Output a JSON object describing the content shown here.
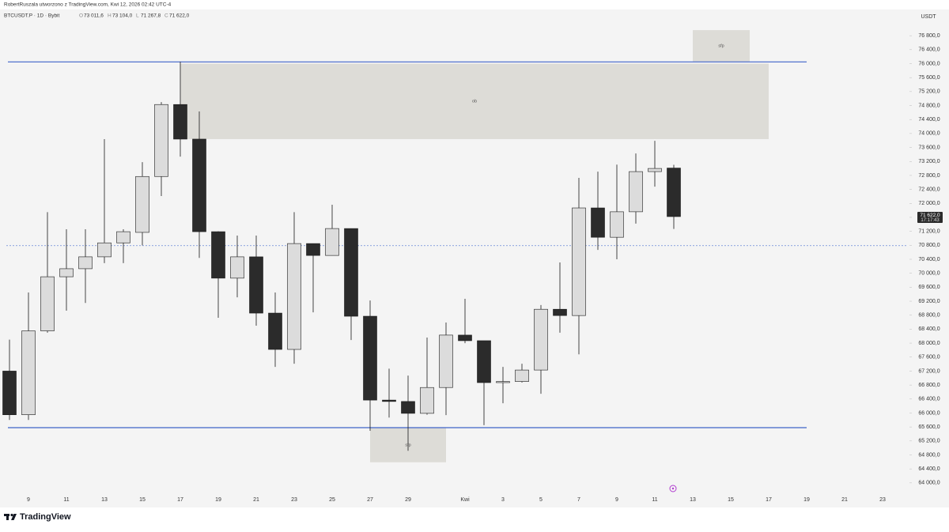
{
  "header": {
    "credit": "RobertRuszala utworzono z TradingView.com, Kwi 12, 2026 02:42 UTC-4",
    "symbol": "BTCUSDT.P · 1D · Bybit",
    "ohlc": [
      {
        "key": "O",
        "text": "73 011,6"
      },
      {
        "key": "H",
        "text": "73 104,0"
      },
      {
        "key": "L",
        "text": "71 267,8"
      },
      {
        "key": "C",
        "text": "71 622,0"
      }
    ]
  },
  "footer": {
    "brand": "TradingView"
  },
  "chart_data": {
    "type": "candlestick",
    "currency": "USDT",
    "categories": [
      null,
      "9",
      null,
      "11",
      null,
      "13",
      null,
      "15",
      null,
      "17",
      null,
      "19",
      null,
      "21",
      null,
      "23",
      null,
      "25",
      null,
      "27",
      null,
      "29",
      null,
      null,
      "Kwi",
      null,
      "3",
      null,
      "5",
      null,
      "7",
      null,
      "9",
      null,
      "11",
      null,
      "13",
      null,
      "15",
      null,
      "17",
      null,
      "19",
      null,
      "21",
      null,
      "23",
      null
    ],
    "open": [
      67200,
      65950,
      68350,
      69900,
      70130,
      70470,
      70870,
      71170,
      72770,
      74830,
      73840,
      71190,
      69860,
      70470,
      68860,
      67820,
      70850,
      70510,
      71280,
      68770,
      66370,
      66330,
      65990,
      66730,
      68230,
      68070,
      66870,
      66900,
      67230,
      68970,
      68790,
      71870,
      71030,
      71760,
      72910,
      73011.6,
      null,
      null,
      null,
      null,
      null,
      null,
      null,
      null,
      null,
      null,
      null,
      null
    ],
    "high": [
      68100,
      69450,
      71750,
      71260,
      71260,
      73840,
      71260,
      73180,
      74900,
      76054,
      74630,
      71200,
      71080,
      71080,
      69450,
      71750,
      70850,
      71960,
      71280,
      69220,
      67270,
      67070,
      68160,
      68590,
      69270,
      68070,
      67320,
      67410,
      69090,
      70310,
      72730,
      72910,
      73110,
      73430,
      73790,
      73104,
      null,
      null,
      null,
      null,
      null,
      null,
      null,
      null,
      null,
      null,
      null,
      null
    ],
    "low": [
      65800,
      65800,
      68300,
      68930,
      69150,
      70290,
      70290,
      70800,
      72210,
      73340,
      70440,
      68725,
      69310,
      68500,
      67320,
      67410,
      68880,
      70510,
      68090,
      65490,
      65870,
      64920,
      65950,
      65940,
      68000,
      65650,
      66280,
      66870,
      66550,
      68300,
      67680,
      70670,
      70400,
      71420,
      72480,
      71267.8,
      null,
      null,
      null,
      null,
      null,
      null,
      null,
      null,
      null,
      null,
      null,
      null
    ],
    "close": [
      65950,
      68350,
      69900,
      70130,
      70470,
      70870,
      71190,
      72770,
      74830,
      73840,
      71190,
      69860,
      70470,
      68860,
      67820,
      70850,
      70510,
      71280,
      68770,
      66370,
      66330,
      65990,
      66730,
      68230,
      68070,
      66870,
      66900,
      67230,
      68970,
      68790,
      71870,
      71030,
      71760,
      72910,
      73000,
      71622,
      null,
      null,
      null,
      null,
      null,
      null,
      null,
      null,
      null,
      null,
      null,
      null
    ],
    "up_color": "#dcdcdc",
    "down_color": "#2b2b2b",
    "outline_color": "#1a1a1a",
    "last_price_label": "71 622,0",
    "countdown": "17:17:43",
    "ylim": [
      63680,
      77550
    ],
    "yticks": [
      {
        "value": 64000,
        "label": "64 000,0"
      },
      {
        "value": 64400,
        "label": "64 400,0"
      },
      {
        "value": 64800,
        "label": "64 800,0"
      },
      {
        "value": 65200,
        "label": "65 200,0"
      },
      {
        "value": 65600,
        "label": "65 600,0"
      },
      {
        "value": 66000,
        "label": "66 000,0"
      },
      {
        "value": 66400,
        "label": "66 400,0"
      },
      {
        "value": 66800,
        "label": "66 800,0"
      },
      {
        "value": 67200,
        "label": "67 200,0"
      },
      {
        "value": 67600,
        "label": "67 600,0"
      },
      {
        "value": 68000,
        "label": "68 000,0"
      },
      {
        "value": 68400,
        "label": "68 400,0"
      },
      {
        "value": 68800,
        "label": "68 800,0"
      },
      {
        "value": 69200,
        "label": "69 200,0"
      },
      {
        "value": 69600,
        "label": "69 600,0"
      },
      {
        "value": 70000,
        "label": "70 000,0"
      },
      {
        "value": 70400,
        "label": "70 400,0"
      },
      {
        "value": 70800,
        "label": "70 800,0"
      },
      {
        "value": 71200,
        "label": "71 200,0"
      },
      {
        "value": 71600,
        "label": "71 600,0"
      },
      {
        "value": 72000,
        "label": "72 000,0"
      },
      {
        "value": 72400,
        "label": "72 400,0"
      },
      {
        "value": 72800,
        "label": "72 800,0"
      },
      {
        "value": 73200,
        "label": "73 200,0"
      },
      {
        "value": 73600,
        "label": "73 600,0"
      },
      {
        "value": 74000,
        "label": "74 000,0"
      },
      {
        "value": 74400,
        "label": "74 400,0"
      },
      {
        "value": 74800,
        "label": "74 800,0"
      },
      {
        "value": 75200,
        "label": "75 200,0"
      },
      {
        "value": 75600,
        "label": "75 600,0"
      },
      {
        "value": 76000,
        "label": "76 000,0"
      },
      {
        "value": 76400,
        "label": "76 400,0"
      },
      {
        "value": 76800,
        "label": "76 800,0"
      }
    ],
    "levels": [
      {
        "value": 76050,
        "color": "#3f63c8",
        "style": "solid",
        "from": 0,
        "to": 42
      },
      {
        "value": 65580,
        "color": "#3f63c8",
        "style": "solid",
        "from": 0,
        "to": 42
      },
      {
        "value": 70790,
        "color": "#6a86d8",
        "style": "dashed",
        "from": 0,
        "to": 47
      }
    ],
    "zones": [
      {
        "label": "ob",
        "top": 76000,
        "bottom": 73840,
        "from": 9,
        "to": 40,
        "color": "#dddcd7"
      },
      {
        "label": "sfp",
        "top": 76960,
        "bottom": 76050,
        "from": 36,
        "to": 39,
        "color": "#dddcd7"
      },
      {
        "label": "sfp",
        "top": 65580,
        "bottom": 64590,
        "from": 19,
        "to": 23,
        "color": "#dddcd7"
      }
    ]
  }
}
